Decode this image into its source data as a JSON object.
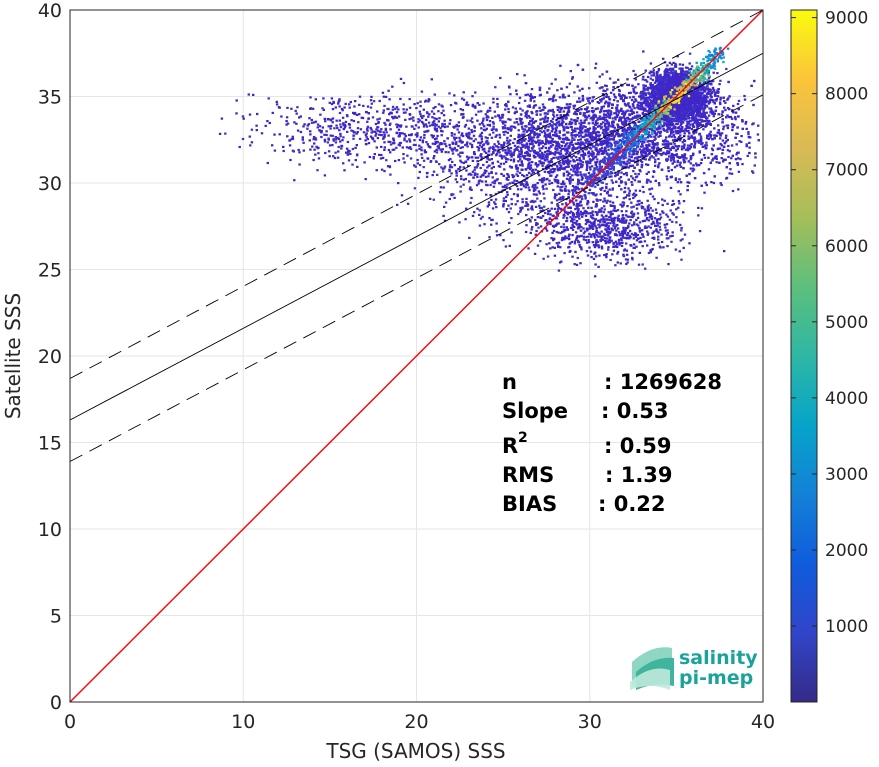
{
  "chart_data": {
    "type": "heatmap",
    "xlabel": "TSG (SAMOS) SSS",
    "ylabel": "Satellite SSS",
    "xlim": [
      0,
      40
    ],
    "ylim": [
      0,
      40
    ],
    "x_ticks": [
      "0",
      "10",
      "20",
      "30",
      "40"
    ],
    "y_ticks": [
      "0",
      "5",
      "10",
      "15",
      "20",
      "25",
      "30",
      "35",
      "40"
    ],
    "grid": true,
    "colormap": "parula",
    "colorbar": {
      "range": [
        1,
        9100
      ],
      "ticks": [
        "1000",
        "2000",
        "3000",
        "4000",
        "5000",
        "6000",
        "7000",
        "8000",
        "9000"
      ]
    },
    "lines": [
      {
        "style": "identity",
        "color": "#ff0000",
        "x": [
          0,
          40
        ],
        "y": [
          0,
          40
        ]
      },
      {
        "style": "regression",
        "color": "#000000",
        "x": [
          0,
          40
        ],
        "y": [
          16.3,
          37.5
        ]
      },
      {
        "style": "regression-upper",
        "color": "#000000",
        "dash": true,
        "x": [
          0,
          40
        ],
        "y": [
          18.7,
          40.0
        ]
      },
      {
        "style": "regression-lower",
        "color": "#000000",
        "dash": true,
        "x": [
          0,
          40
        ],
        "y": [
          13.9,
          35.1
        ]
      }
    ],
    "density_clusters": [
      {
        "x": 33.0,
        "y": 33.0,
        "sx": 4.5,
        "sy": 2.0,
        "weight": 1.0
      },
      {
        "x": 35.0,
        "y": 35.0,
        "sx": 1.2,
        "sy": 1.0,
        "weight": 1.0
      },
      {
        "x": 27.0,
        "y": 31.5,
        "sx": 4.5,
        "sy": 2.5,
        "weight": 0.6
      },
      {
        "x": 18.0,
        "y": 33.0,
        "sx": 5.0,
        "sy": 1.5,
        "weight": 0.25
      },
      {
        "x": 31.0,
        "y": 27.5,
        "sx": 3.0,
        "sy": 1.5,
        "weight": 0.3
      }
    ],
    "stats": [
      {
        "label": "n",
        "value": ": 1269628"
      },
      {
        "label": "Slope",
        "value": ": 0.53"
      },
      {
        "label": "R",
        "sup": "2",
        "value": ": 0.59"
      },
      {
        "label": "RMS",
        "value": ": 1.39"
      },
      {
        "label": "BIAS",
        "value": ": 0.22"
      }
    ]
  },
  "logo": {
    "line1": "salinity",
    "line2": "pi-mep"
  }
}
